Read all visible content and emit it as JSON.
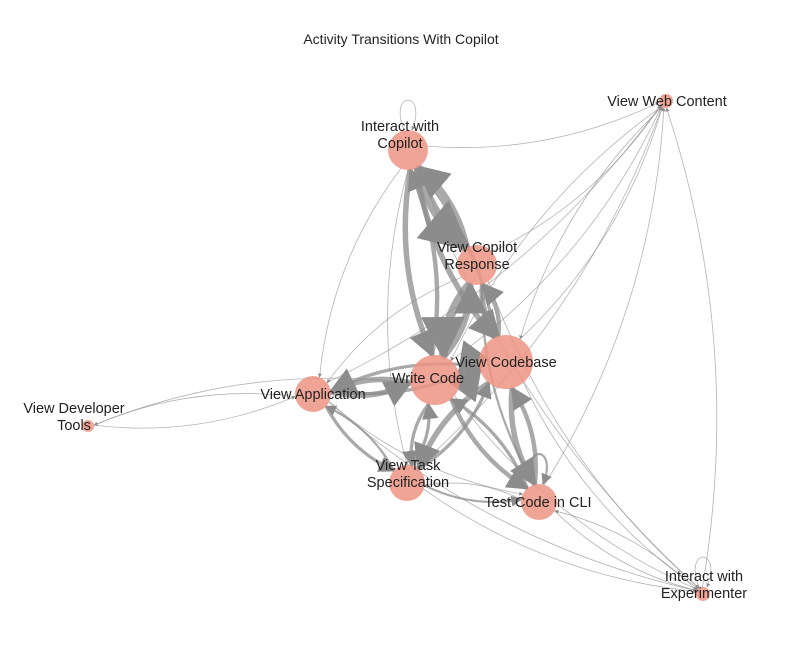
{
  "title": "Activity Transitions With Copilot",
  "colors": {
    "node": "#ec9483",
    "edge": "#8c8c8c",
    "background": "#ffffff"
  },
  "nodes": [
    {
      "id": "copilot",
      "label": [
        "Interact with",
        "Copilot"
      ],
      "size": 20
    },
    {
      "id": "web",
      "label": [
        "View Web Content"
      ],
      "size": 7
    },
    {
      "id": "response",
      "label": [
        "View Copilot",
        "Response"
      ],
      "size": 20
    },
    {
      "id": "codebase",
      "label": [
        "View Codebase"
      ],
      "size": 27
    },
    {
      "id": "write",
      "label": [
        "Write Code"
      ],
      "size": 25
    },
    {
      "id": "app",
      "label": [
        "View Application"
      ],
      "size": 18
    },
    {
      "id": "devtools",
      "label": [
        "View Developer",
        "Tools"
      ],
      "size": 6
    },
    {
      "id": "task",
      "label": [
        "View Task",
        "Specification"
      ],
      "size": 18
    },
    {
      "id": "cli",
      "label": [
        "Test Code in CLI"
      ],
      "size": 18
    },
    {
      "id": "experimenter",
      "label": [
        "Interact with",
        "Experimenter"
      ],
      "size": 7
    }
  ],
  "edges": [
    [
      "copilot",
      "response",
      9
    ],
    [
      "response",
      "copilot",
      6
    ],
    [
      "copilot",
      "write",
      5
    ],
    [
      "write",
      "copilot",
      4
    ],
    [
      "copilot",
      "codebase",
      5
    ],
    [
      "codebase",
      "copilot",
      3
    ],
    [
      "response",
      "write",
      8
    ],
    [
      "write",
      "response",
      6
    ],
    [
      "response",
      "codebase",
      5
    ],
    [
      "codebase",
      "response",
      4
    ],
    [
      "write",
      "codebase",
      6
    ],
    [
      "codebase",
      "write",
      6
    ],
    [
      "write",
      "app",
      5
    ],
    [
      "app",
      "write",
      5
    ],
    [
      "codebase",
      "app",
      3
    ],
    [
      "app",
      "codebase",
      3
    ],
    [
      "write",
      "task",
      3
    ],
    [
      "task",
      "write",
      3
    ],
    [
      "codebase",
      "task",
      5
    ],
    [
      "task",
      "codebase",
      3
    ],
    [
      "codebase",
      "cli",
      5
    ],
    [
      "cli",
      "codebase",
      4
    ],
    [
      "write",
      "cli",
      4
    ],
    [
      "cli",
      "write",
      3
    ],
    [
      "task",
      "cli",
      2
    ],
    [
      "cli",
      "task",
      1
    ],
    [
      "app",
      "task",
      3
    ],
    [
      "task",
      "app",
      2
    ],
    [
      "app",
      "cli",
      1
    ],
    [
      "copilot",
      "task",
      1
    ],
    [
      "copilot",
      "app",
      1
    ],
    [
      "response",
      "app",
      1
    ],
    [
      "response",
      "cli",
      2
    ],
    [
      "copilot",
      "web",
      1
    ],
    [
      "web",
      "codebase",
      1
    ],
    [
      "codebase",
      "web",
      1
    ],
    [
      "write",
      "web",
      1
    ],
    [
      "app",
      "web",
      1
    ],
    [
      "task",
      "web",
      1
    ],
    [
      "cli",
      "web",
      1
    ],
    [
      "experimenter",
      "web",
      1
    ],
    [
      "response",
      "web",
      1
    ],
    [
      "web",
      "write",
      1
    ],
    [
      "app",
      "devtools",
      1
    ],
    [
      "devtools",
      "app",
      1
    ],
    [
      "write",
      "devtools",
      1
    ],
    [
      "copilot",
      "experimenter",
      1
    ],
    [
      "cli",
      "experimenter",
      1
    ],
    [
      "task",
      "experimenter",
      1
    ],
    [
      "codebase",
      "experimenter",
      1
    ],
    [
      "write",
      "experimenter",
      1
    ],
    [
      "app",
      "experimenter",
      1
    ],
    [
      "experimenter",
      "cli",
      1
    ],
    [
      "response",
      "experimenter",
      1
    ],
    [
      "copilot",
      "copilot",
      1
    ],
    [
      "cli",
      "cli",
      2
    ],
    [
      "experimenter",
      "experimenter",
      1
    ]
  ]
}
